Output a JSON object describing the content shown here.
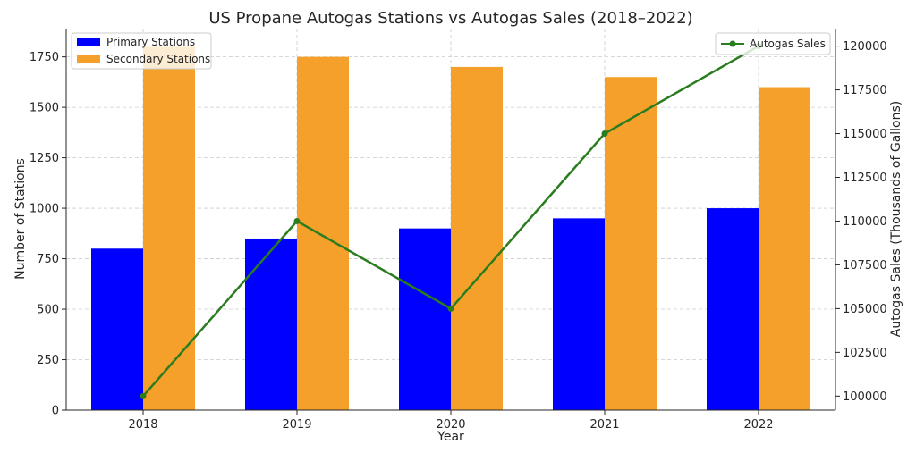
{
  "chart_data": {
    "type": "bar",
    "title": "US Propane Autogas Stations vs Autogas Sales (2018–2022)",
    "xlabel": "Year",
    "ylabel": "Number of Stations",
    "y2label": "Autogas Sales (Thousands of Gallons)",
    "categories": [
      "2018",
      "2019",
      "2020",
      "2021",
      "2022"
    ],
    "ylim": [
      0,
      1890
    ],
    "yticks": [
      0,
      250,
      500,
      750,
      1000,
      1250,
      1500,
      1750
    ],
    "y2lim": [
      99200,
      121000
    ],
    "y2ticks": [
      100000,
      102500,
      105000,
      107500,
      110000,
      112500,
      115000,
      117500,
      120000
    ],
    "grid": true,
    "legend_bars_position": "top-left",
    "legend_line_position": "top-right",
    "series": [
      {
        "name": "Primary Stations",
        "type": "bar",
        "axis": "left",
        "color": "#0000ff",
        "values": [
          800,
          850,
          900,
          950,
          1000
        ]
      },
      {
        "name": "Secondary Stations",
        "type": "bar",
        "axis": "left",
        "color": "#f4a02a",
        "values": [
          1800,
          1750,
          1700,
          1650,
          1600
        ]
      },
      {
        "name": "Autogas Sales",
        "type": "line",
        "axis": "right",
        "color": "#2a7d1f",
        "values": [
          100000,
          110000,
          105000,
          115000,
          120000
        ]
      }
    ]
  }
}
